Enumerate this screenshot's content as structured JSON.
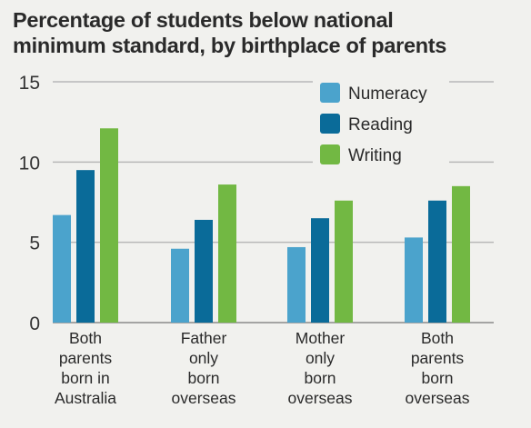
{
  "title_lines": [
    "Percentage of students below national",
    "minimum standard, by birthplace of parents"
  ],
  "colors": {
    "Numeracy": "#4ba3cc",
    "Reading": "#0a6b99",
    "Writing": "#72b843",
    "grid": "#b8b8b8",
    "background": "#f1f1ee"
  },
  "chart_data": {
    "type": "bar",
    "title": "Percentage of students below national minimum standard, by birthplace of parents",
    "categories": [
      [
        "Both",
        "parents",
        "born in",
        "Australia"
      ],
      [
        "Father",
        "only",
        "born",
        "overseas"
      ],
      [
        "Mother",
        "only",
        "born",
        "overseas"
      ],
      [
        "Both",
        "parents",
        "born",
        "overseas"
      ]
    ],
    "series": [
      {
        "name": "Numeracy",
        "values": [
          6.7,
          4.6,
          4.7,
          5.3
        ]
      },
      {
        "name": "Reading",
        "values": [
          9.5,
          6.4,
          6.5,
          7.6
        ]
      },
      {
        "name": "Writing",
        "values": [
          12.1,
          8.6,
          7.6,
          8.5
        ]
      }
    ],
    "xlabel": "",
    "ylabel": "",
    "ylim": [
      0,
      15
    ],
    "yticks": [
      0,
      5,
      10,
      15
    ],
    "grid": true,
    "legend_position": "top-right"
  }
}
